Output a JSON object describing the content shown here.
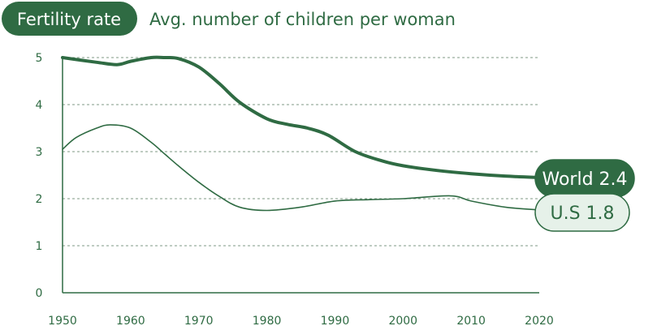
{
  "colors": {
    "primary": "#2f6b43",
    "pill_light_fill": "#e6f1e9",
    "grid": "#7f9a86",
    "white": "#ffffff"
  },
  "header": {
    "title": "Fertility rate",
    "subtitle": "Avg. number of children per woman"
  },
  "chart_data": {
    "type": "line",
    "title": "Fertility rate",
    "subtitle": "Avg. number of children per woman",
    "xlabel": "",
    "ylabel": "",
    "xlim": [
      1950,
      2020
    ],
    "ylim": [
      0,
      5
    ],
    "x_ticks": [
      1950,
      1960,
      1970,
      1980,
      1990,
      2000,
      2010,
      2020
    ],
    "y_ticks": [
      0,
      1,
      2,
      3,
      4,
      5
    ],
    "grid": "horizontal dashed",
    "series": [
      {
        "name": "World",
        "end_label": "World 2.4",
        "x": [
          1950,
          1955,
          1958,
          1960,
          1963,
          1965,
          1967,
          1970,
          1973,
          1976,
          1980,
          1983,
          1986,
          1989,
          1993,
          1997,
          2000,
          2005,
          2010,
          2015,
          2020
        ],
        "y": [
          5.0,
          4.9,
          4.85,
          4.92,
          5.0,
          5.0,
          4.98,
          4.8,
          4.45,
          4.05,
          3.7,
          3.58,
          3.5,
          3.35,
          3.0,
          2.8,
          2.7,
          2.6,
          2.53,
          2.48,
          2.45
        ]
      },
      {
        "name": "U.S",
        "end_label": "U.S 1.8",
        "x": [
          1950,
          1952,
          1955,
          1957,
          1960,
          1963,
          1965,
          1967,
          1970,
          1973,
          1976,
          1980,
          1985,
          1990,
          1995,
          2000,
          2007,
          2010,
          2015,
          2020
        ],
        "y": [
          3.05,
          3.3,
          3.5,
          3.57,
          3.5,
          3.2,
          2.95,
          2.7,
          2.35,
          2.05,
          1.82,
          1.75,
          1.82,
          1.95,
          1.98,
          2.0,
          2.06,
          1.95,
          1.82,
          1.76
        ]
      }
    ]
  }
}
